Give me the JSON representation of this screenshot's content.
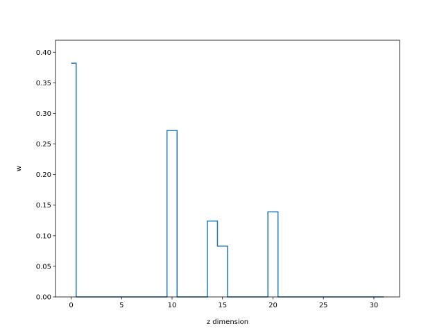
{
  "chart_data": {
    "type": "line",
    "drawstyle": "steps-mid",
    "title": "",
    "xlabel": "z dimension",
    "ylabel": "w",
    "xlim": [
      -1.55,
      32.55
    ],
    "ylim": [
      0,
      0.4196
    ],
    "xticks": [
      0,
      5,
      10,
      15,
      20,
      25,
      30
    ],
    "yticks": [
      0.0,
      0.05,
      0.1,
      0.15,
      0.2,
      0.25,
      0.3,
      0.35,
      0.4
    ],
    "ytick_labels": [
      "0.00",
      "0.05",
      "0.10",
      "0.15",
      "0.20",
      "0.25",
      "0.30",
      "0.35",
      "0.40"
    ],
    "grid": false,
    "series": [
      {
        "color": "#1f77b4",
        "x": [
          0,
          1,
          2,
          3,
          4,
          5,
          6,
          7,
          8,
          9,
          10,
          11,
          12,
          13,
          14,
          15,
          16,
          17,
          18,
          19,
          20,
          21,
          22,
          23,
          24,
          25,
          26,
          27,
          28,
          29,
          30,
          31
        ],
        "values": [
          0.382,
          0,
          0,
          0,
          0,
          0,
          0,
          0,
          0,
          0,
          0.272,
          0,
          0,
          0,
          0.124,
          0.083,
          0,
          0,
          0,
          0,
          0.139,
          0,
          0,
          0,
          0,
          0,
          0,
          0,
          0,
          0,
          0,
          0
        ]
      }
    ]
  }
}
